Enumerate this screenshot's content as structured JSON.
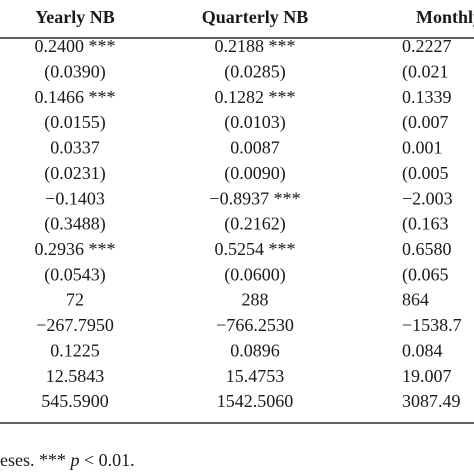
{
  "table": {
    "header": [
      "Yearly NB",
      "Quarterly NB",
      "Monthly"
    ],
    "rows": [
      [
        "0.2400 ***",
        "0.2188 ***",
        "0.2227"
      ],
      [
        "(0.0390)",
        "(0.0285)",
        "(0.021"
      ],
      [
        "0.1466 ***",
        "0.1282 ***",
        "0.1339"
      ],
      [
        "(0.0155)",
        "(0.0103)",
        "(0.007"
      ],
      [
        "0.0337",
        "0.0087",
        "0.001"
      ],
      [
        "(0.0231)",
        "(0.0090)",
        "(0.005"
      ],
      [
        "−0.1403",
        "−0.8937 ***",
        "−2.003"
      ],
      [
        "(0.3488)",
        "(0.2162)",
        "(0.163"
      ],
      [
        "0.2936 ***",
        "0.5254 ***",
        "0.6580"
      ],
      [
        "(0.0543)",
        "(0.0600)",
        "(0.065"
      ],
      [
        "72",
        "288",
        "864"
      ],
      [
        "−267.7950",
        "−766.2530",
        "−1538.7"
      ],
      [
        "0.1225",
        "0.0896",
        "0.084"
      ],
      [
        "12.5843",
        "15.4753",
        "19.007"
      ],
      [
        "545.5900",
        "1542.5060",
        "3087.49"
      ]
    ],
    "footnote": {
      "before": "eses. ***",
      "italic": "p",
      "after": "< 0.01."
    }
  }
}
